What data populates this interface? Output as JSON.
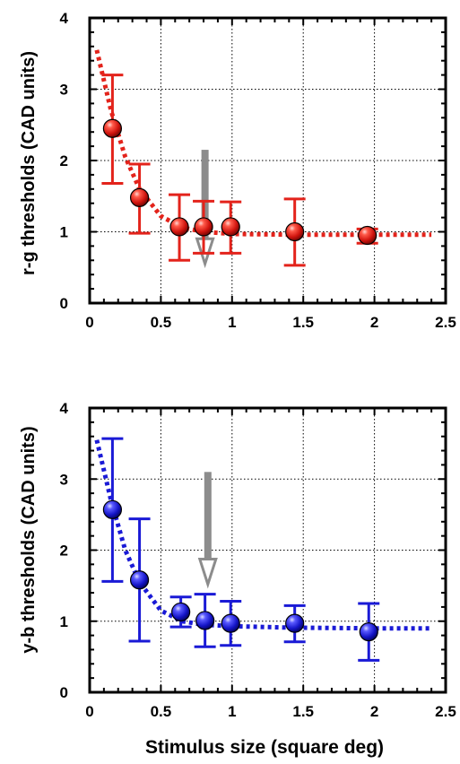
{
  "figure": {
    "xlabel": "Stimulus size (square deg)"
  },
  "chart_data": [
    {
      "type": "scatter",
      "ylabel": "r-g thresholds (CAD units)",
      "xlim": [
        0,
        2.5
      ],
      "ylim": [
        0,
        4
      ],
      "xticks": [
        0,
        0.5,
        1,
        1.5,
        2,
        2.5
      ],
      "xtick_labels": [
        "0",
        "0.5",
        "1",
        "1.5",
        "2",
        "2.5"
      ],
      "yticks": [
        0,
        1,
        2,
        3,
        4
      ],
      "ytick_labels": [
        "0",
        "1",
        "2",
        "3",
        "4"
      ],
      "grid": true,
      "color": "#e3231b",
      "points": [
        {
          "x": 0.16,
          "y": 2.45,
          "lo": 1.68,
          "hi": 3.2
        },
        {
          "x": 0.35,
          "y": 1.48,
          "lo": 0.98,
          "hi": 1.95
        },
        {
          "x": 0.63,
          "y": 1.07,
          "lo": 0.6,
          "hi": 1.52
        },
        {
          "x": 0.8,
          "y": 1.07,
          "lo": 0.7,
          "hi": 1.43
        },
        {
          "x": 0.99,
          "y": 1.07,
          "lo": 0.7,
          "hi": 1.42
        },
        {
          "x": 1.44,
          "y": 1.0,
          "lo": 0.53,
          "hi": 1.46
        },
        {
          "x": 1.95,
          "y": 0.95,
          "lo": 0.84,
          "hi": 1.04
        }
      ],
      "fit": {
        "x": [
          0.05,
          0.15,
          0.25,
          0.35,
          0.5,
          0.65,
          0.8,
          1.0,
          1.4,
          2.0,
          2.4
        ],
        "y": [
          3.55,
          2.7,
          2.05,
          1.6,
          1.22,
          1.06,
          1.0,
          0.97,
          0.96,
          0.96,
          0.96
        ]
      },
      "arrow": {
        "x": 0.81,
        "y_top": 2.15,
        "y_tip": 0.55,
        "color": "#8c8c8c"
      }
    },
    {
      "type": "scatter",
      "ylabel": "y-b thresholds (CAD units)",
      "xlim": [
        0,
        2.5
      ],
      "ylim": [
        0,
        4
      ],
      "xticks": [
        0,
        0.5,
        1,
        1.5,
        2,
        2.5
      ],
      "xtick_labels": [
        "0",
        "0.5",
        "1",
        "1.5",
        "2",
        "2.5"
      ],
      "yticks": [
        0,
        1,
        2,
        3,
        4
      ],
      "ytick_labels": [
        "0",
        "1",
        "2",
        "3",
        "4"
      ],
      "grid": true,
      "color": "#1a1ad6",
      "points": [
        {
          "x": 0.16,
          "y": 2.57,
          "lo": 1.56,
          "hi": 3.57
        },
        {
          "x": 0.35,
          "y": 1.58,
          "lo": 0.72,
          "hi": 2.44
        },
        {
          "x": 0.64,
          "y": 1.13,
          "lo": 0.92,
          "hi": 1.34
        },
        {
          "x": 0.81,
          "y": 1.01,
          "lo": 0.64,
          "hi": 1.38
        },
        {
          "x": 0.99,
          "y": 0.97,
          "lo": 0.66,
          "hi": 1.28
        },
        {
          "x": 1.44,
          "y": 0.97,
          "lo": 0.71,
          "hi": 1.22
        },
        {
          "x": 1.96,
          "y": 0.85,
          "lo": 0.45,
          "hi": 1.25
        }
      ],
      "fit": {
        "x": [
          0.05,
          0.15,
          0.25,
          0.35,
          0.5,
          0.65,
          0.8,
          1.0,
          1.4,
          2.0,
          2.4
        ],
        "y": [
          3.55,
          2.7,
          2.0,
          1.55,
          1.15,
          1.0,
          0.95,
          0.93,
          0.91,
          0.9,
          0.9
        ]
      },
      "arrow": {
        "x": 0.83,
        "y_top": 3.1,
        "y_tip": 1.52,
        "color": "#8c8c8c"
      }
    }
  ]
}
